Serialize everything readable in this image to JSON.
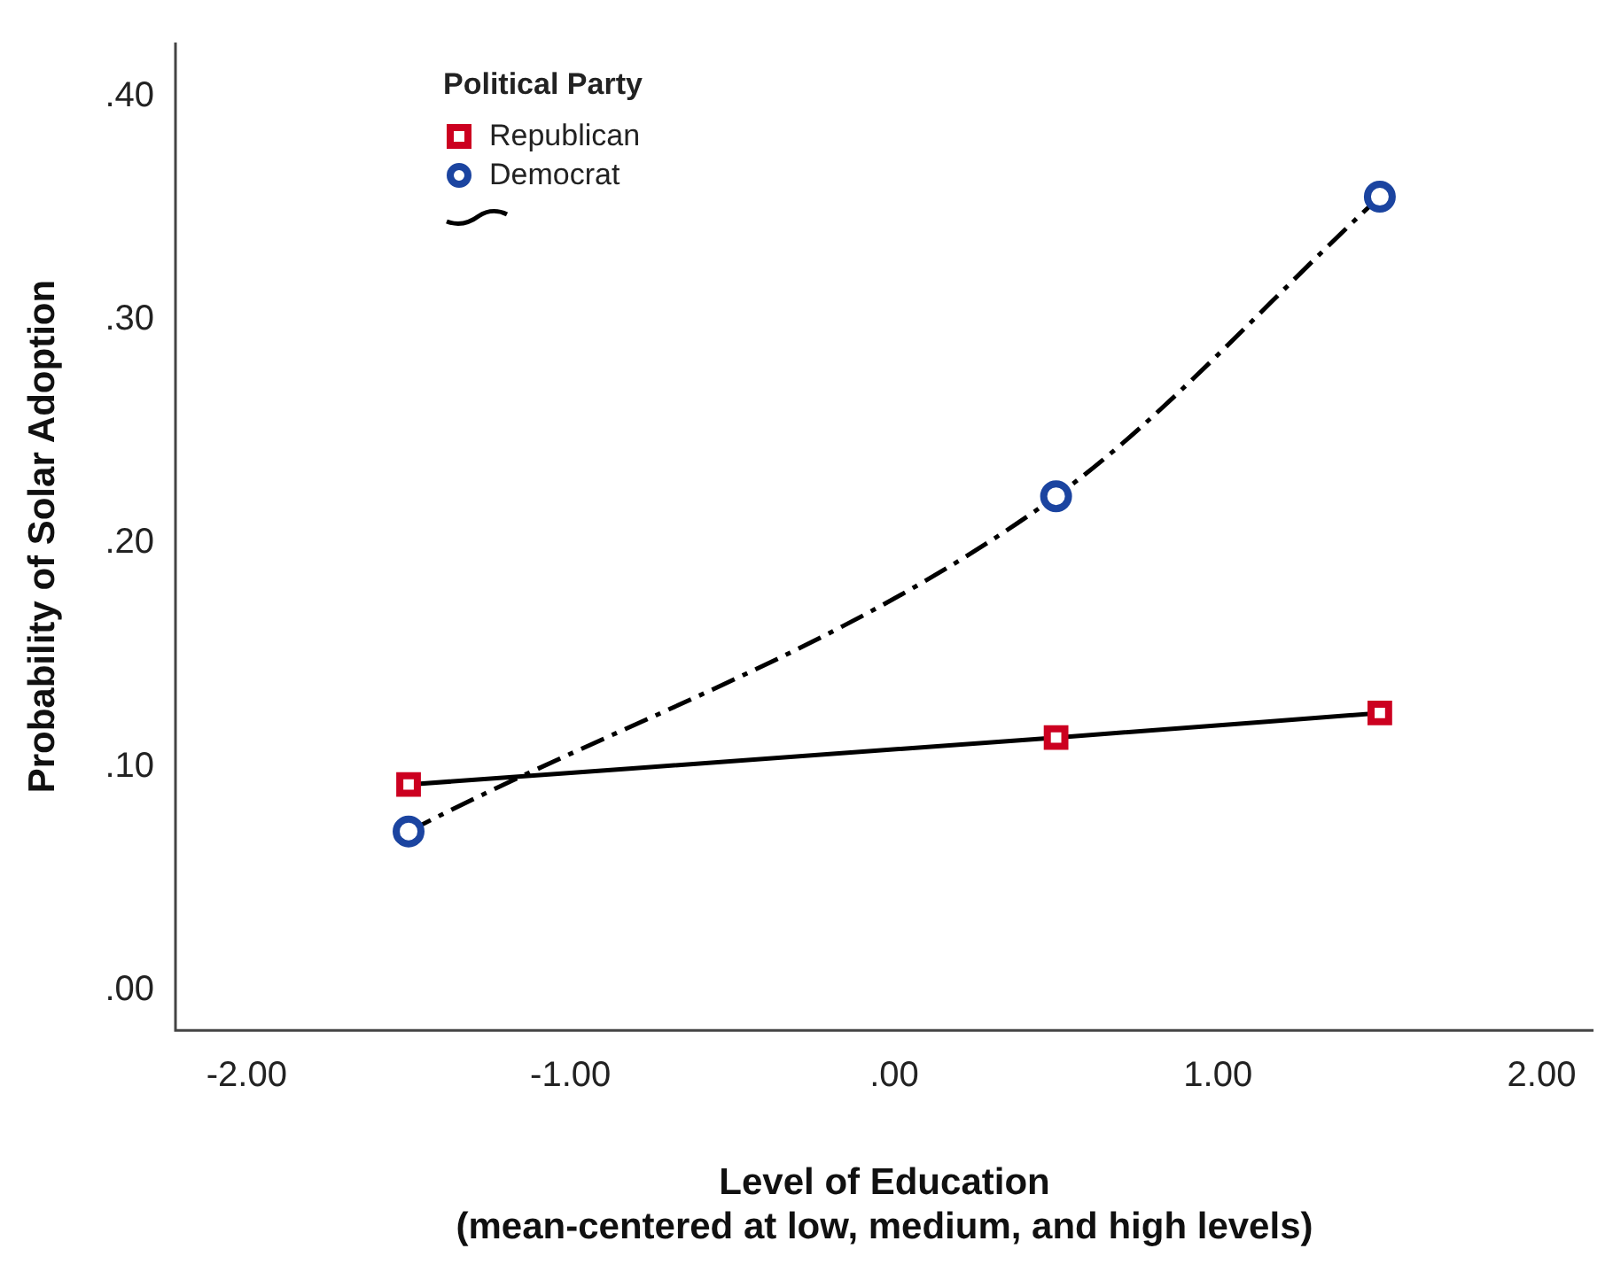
{
  "chart_data": {
    "type": "scatter",
    "xlabel": "Level of Education\n(mean-centered at low, medium, and high levels)",
    "ylabel": "Probability of Solar Adoption",
    "legend_title": "Political Party",
    "legend": "top left",
    "grid": false,
    "x": [
      -1.5,
      0.5,
      1.5
    ],
    "xlim": [
      -2.22,
      2.16
    ],
    "xticks": [
      {
        "value": -2,
        "label": "-2.00"
      },
      {
        "value": -1,
        "label": "-1.00"
      },
      {
        "value": 0,
        "label": ".00"
      },
      {
        "value": 1,
        "label": "1.00"
      },
      {
        "value": 2,
        "label": "2.00"
      }
    ],
    "ylim": [
      -0.018,
      0.424
    ],
    "yticks": [
      {
        "value": 0,
        "label": ".00"
      },
      {
        "value": 0.1,
        "label": ".10"
      },
      {
        "value": 0.2,
        "label": ".20"
      },
      {
        "value": 0.3,
        "label": ".30"
      },
      {
        "value": 0.4,
        "label": ".40"
      }
    ],
    "series": [
      {
        "name": "Republican",
        "type": "scatter",
        "marker": "square",
        "color": "#cc0020",
        "values": [
          0.092,
          0.113,
          0.124
        ]
      },
      {
        "name": "Democrat",
        "type": "scatter",
        "marker": "circle",
        "color": "#1b44a0",
        "values": [
          0.071,
          0.221,
          0.355
        ]
      },
      {
        "type": "line",
        "marker": "none",
        "line_style": "solid",
        "color": "#000000",
        "values": [
          0.092,
          0.113,
          0.124
        ]
      },
      {
        "type": "line",
        "marker": "none",
        "line_style": "dashed",
        "color": "#000000",
        "values": [
          0.071,
          0.221,
          0.355
        ]
      }
    ]
  }
}
